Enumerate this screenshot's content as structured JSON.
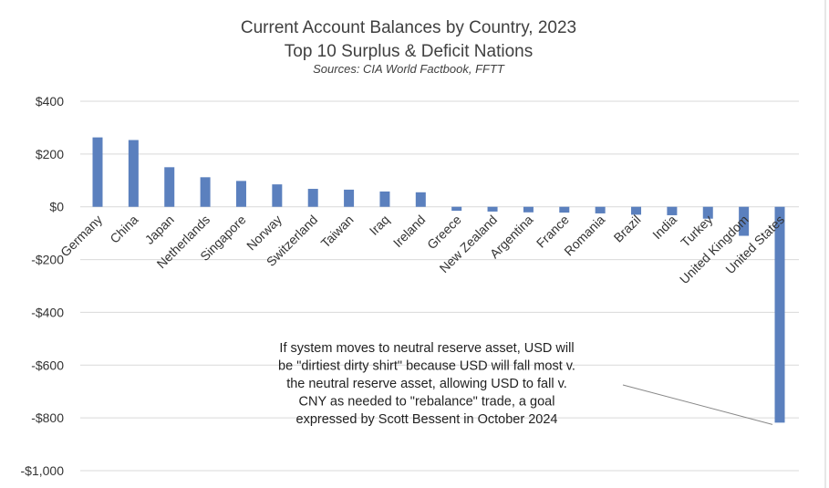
{
  "chart_data": {
    "type": "bar",
    "title": "Current Account Balances by Country, 2023",
    "subtitle": "Top 10 Surplus & Deficit Nations",
    "source": "Sources: CIA World Factbook, FFTT",
    "categories": [
      "Germany",
      "China",
      "Japan",
      "Netherlands",
      "Singapore",
      "Norway",
      "Switzerland",
      "Taiwan",
      "Iraq",
      "Ireland",
      "Greece",
      "New Zealand",
      "Argentina",
      "France",
      "Romania",
      "Brazil",
      "India",
      "Turkey",
      "United Kingdom",
      "United States"
    ],
    "values": [
      263,
      253,
      150,
      112,
      98,
      85,
      68,
      65,
      58,
      55,
      -15,
      -18,
      -21,
      -22,
      -25,
      -30,
      -32,
      -45,
      -110,
      -818
    ],
    "ylim": [
      -1000,
      400
    ],
    "yticks": [
      400,
      200,
      0,
      -200,
      -400,
      -600,
      -800,
      -1000
    ],
    "ytick_labels": [
      "$400",
      "$200",
      "$0",
      "-$200",
      "-$400",
      "-$600",
      "-$800",
      "-$1,000"
    ],
    "grid": true,
    "legend": "none",
    "bar_color": "#5b80be",
    "annotation": {
      "lines": [
        "If system moves to neutral reserve asset, USD will",
        "be \"dirtiest dirty shirt\" because USD will fall most v.",
        "the neutral reserve asset, allowing USD to fall v.",
        "CNY as needed to \"rebalance\" trade, a goal",
        "expressed by Scott Bessent in October 2024"
      ],
      "points_to": "United States"
    }
  }
}
